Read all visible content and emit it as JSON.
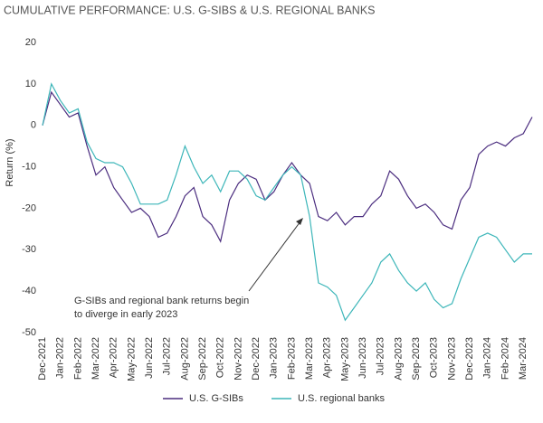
{
  "chart_data": {
    "type": "line",
    "title": "CUMULATIVE PERFORMANCE: U.S. G-SIBS & U.S. REGIONAL BANKS",
    "y_label": "Return (%)",
    "annotation": [
      "G-SIBs and regional bank returns begin",
      "to diverge in early 2023"
    ],
    "categories": [
      "Dec-2021",
      null,
      "Jan-2022",
      null,
      "Feb-2022",
      null,
      "Mar-2022",
      null,
      "Apr-2022",
      null,
      "May-2022",
      null,
      "Jun-2022",
      null,
      "Jul-2022",
      null,
      "Aug-2022",
      null,
      "Sep-2022",
      null,
      "Oct-2022",
      null,
      "Nov-2022",
      null,
      "Dec-2022",
      null,
      "Jan-2023",
      null,
      "Feb-2023",
      null,
      "Mar-2023",
      null,
      "Apr-2023",
      null,
      "May-2023",
      null,
      "Jun-2023",
      null,
      "Jul-2023",
      null,
      "Aug-2023",
      null,
      "Sep-2023",
      null,
      "Oct-2023",
      null,
      "Nov-2023",
      null,
      "Dec-2023",
      null,
      "Jan-2024",
      null,
      "Feb-2024",
      null,
      "Mar-2024",
      null
    ],
    "series": [
      {
        "name": "U.S. G-SIBs",
        "color": "#4b2d7f",
        "values": [
          0,
          8,
          5,
          2,
          3,
          -5,
          -12,
          -10,
          -15,
          -18,
          -21,
          -20,
          -22,
          -27,
          -26,
          -22,
          -17,
          -15,
          -22,
          -24,
          -28,
          -18,
          -14,
          -12,
          -13,
          -18,
          -16,
          -12,
          -9,
          -12,
          -14,
          -22,
          -23,
          -21,
          -24,
          -22,
          -22,
          -19,
          -17,
          -11,
          -13,
          -17,
          -20,
          -19,
          -21,
          -24,
          -25,
          -18,
          -15,
          -7,
          -5,
          -4,
          -5,
          -3,
          -2,
          2
        ]
      },
      {
        "name": "U.S. regional banks",
        "color": "#3db6b9",
        "values": [
          0,
          10,
          6,
          3,
          4,
          -4,
          -8,
          -9,
          -9,
          -10,
          -14,
          -19,
          -19,
          -19,
          -18,
          -12,
          -5,
          -10,
          -14,
          -12,
          -16,
          -11,
          -11,
          -13,
          -17,
          -18,
          -15,
          -12,
          -10,
          -12,
          -22,
          -38,
          -39,
          -41,
          -47,
          -44,
          -41,
          -38,
          -33,
          -31,
          -35,
          -38,
          -40,
          -38,
          -42,
          -44,
          -43,
          -37,
          -32,
          -27,
          -26,
          -27,
          -30,
          -33,
          -31,
          -31
        ]
      }
    ],
    "ylim": [
      -50,
      20
    ],
    "yticks": [
      20,
      10,
      0,
      -10,
      -20,
      -30,
      -40,
      -50
    ],
    "grid": false
  }
}
